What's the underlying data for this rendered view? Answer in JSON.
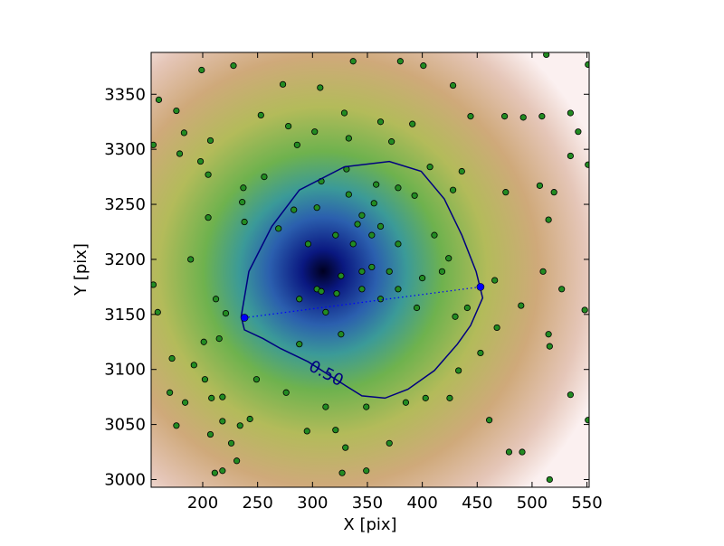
{
  "chart_data": {
    "type": "scatter",
    "xlabel": "X [pix]",
    "ylabel": "Y [pix]",
    "xlim": [
      153,
      552
    ],
    "ylim": [
      2993,
      3388
    ],
    "xticks": [
      200,
      250,
      300,
      350,
      400,
      450,
      500,
      550
    ],
    "yticks": [
      3000,
      3050,
      3100,
      3150,
      3200,
      3250,
      3300,
      3350
    ],
    "series": [
      {
        "color": "#228b22",
        "x": [
          199,
          228,
          273,
          307,
          337,
          380,
          401,
          428,
          513,
          551,
          160,
          176,
          183,
          155,
          179,
          198,
          207,
          205,
          253,
          278,
          286,
          302,
          329,
          333,
          362,
          391,
          372,
          444,
          475,
          492,
          509,
          535,
          542,
          535,
          551,
          507,
          520,
          515,
          476,
          436,
          428,
          407,
          378,
          393,
          358,
          331,
          308,
          333,
          304,
          283,
          237,
          236,
          256,
          205,
          238,
          269,
          356,
          345,
          341,
          362,
          321,
          296,
          337,
          354,
          378,
          411,
          424,
          418,
          400,
          370,
          345,
          326,
          304,
          345,
          378,
          362,
          395,
          430,
          441,
          466,
          490,
          510,
          527,
          548,
          515,
          516,
          468,
          453,
          433,
          403,
          425,
          461,
          479,
          491,
          516,
          535,
          551,
          385,
          349,
          370,
          330,
          327,
          349,
          295,
          321,
          312,
          234,
          243,
          231,
          211,
          218,
          226,
          207,
          218,
          208,
          218,
          202,
          192,
          170,
          176,
          184,
          172,
          201,
          215,
          212,
          221,
          249,
          276,
          288,
          326,
          312,
          288,
          308,
          322,
          354,
          155,
          159,
          189
        ],
        "y": [
          3372,
          3376,
          3359,
          3356,
          3380,
          3380,
          3376,
          3358,
          3386,
          3377,
          3345,
          3335,
          3315,
          3304,
          3296,
          3289,
          3308,
          3277,
          3331,
          3321,
          3304,
          3316,
          3333,
          3310,
          3325,
          3323,
          3307,
          3330,
          3330,
          3329,
          3330,
          3333,
          3316,
          3294,
          3286,
          3267,
          3261,
          3236,
          3261,
          3280,
          3263,
          3284,
          3265,
          3258,
          3268,
          3282,
          3271,
          3259,
          3247,
          3245,
          3265,
          3252,
          3275,
          3238,
          3234,
          3228,
          3251,
          3240,
          3232,
          3230,
          3222,
          3214,
          3214,
          3222,
          3214,
          3222,
          3201,
          3189,
          3183,
          3189,
          3189,
          3185,
          3173,
          3173,
          3173,
          3164,
          3156,
          3148,
          3156,
          3181,
          3158,
          3189,
          3173,
          3154,
          3132,
          3121,
          3138,
          3115,
          3099,
          3074,
          3074,
          3054,
          3025,
          3025,
          3000,
          3077,
          3054,
          3070,
          3066,
          3033,
          3029,
          3006,
          3008,
          3044,
          3045,
          3066,
          3049,
          3055,
          3017,
          3006,
          3008,
          3033,
          3041,
          3053,
          3074,
          3075,
          3091,
          3104,
          3079,
          3049,
          3070,
          3110,
          3125,
          3128,
          3164,
          3151,
          3091,
          3079,
          3123,
          3132,
          3152,
          3164,
          3171,
          3169,
          3193,
          3177,
          3152,
          3200
        ]
      }
    ],
    "contour": {
      "label": "0.50",
      "color": "#000080",
      "x": [
        235,
        242,
        263,
        288,
        329,
        370,
        399,
        420,
        436,
        449,
        455,
        444,
        432,
        411,
        387,
        366,
        345,
        329,
        296,
        271,
        255,
        238,
        235
      ],
      "y": [
        3148,
        3189,
        3230,
        3263,
        3284,
        3289,
        3280,
        3255,
        3222,
        3189,
        3165,
        3140,
        3123,
        3099,
        3082,
        3074,
        3076,
        3086,
        3107,
        3119,
        3128,
        3136,
        3148
      ]
    },
    "markers": {
      "color": "#0000ff",
      "x": [
        238,
        453
      ],
      "y": [
        3147,
        3175
      ]
    }
  }
}
